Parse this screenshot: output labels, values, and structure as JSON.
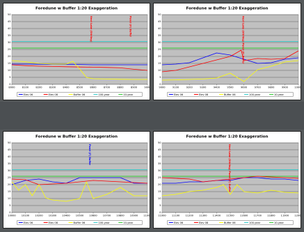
{
  "chart_data": [
    {
      "type": "line",
      "title": "Foredune w Buffer 1:20 Exaggeration",
      "ylim": [
        0,
        50
      ],
      "y_ticks": [
        "0",
        "5",
        "10",
        "15",
        "20",
        "25",
        "30",
        "35",
        "40",
        "45",
        "50"
      ],
      "x_ticks": [
        "8000",
        "8100",
        "8200",
        "8300",
        "8400",
        "8500",
        "8600",
        "8700",
        "8800",
        "8900",
        "9000"
      ],
      "xlim": [
        8000,
        9000
      ],
      "grid": true,
      "legend_position": "bottom",
      "annotations": [
        {
          "text": "Next Lake (Stirling)",
          "x": 8580,
          "color": "#ff0000"
        },
        {
          "text": "Panel (F) Buffer",
          "x": 8870,
          "color": "#ff0000"
        }
      ],
      "series": [
        {
          "name": "Elev 06",
          "color": "#0000ff",
          "x": [
            8000,
            8100,
            8200,
            8300,
            8400,
            8500,
            8600,
            8700,
            8800,
            8900,
            9000
          ],
          "y": [
            14.5,
            14.5,
            14.4,
            14.4,
            14.3,
            14.2,
            14.0,
            14.0,
            14.0,
            14.0,
            14.0
          ]
        },
        {
          "name": "Elev 08",
          "color": "#ff0000",
          "x": [
            8000,
            8100,
            8200,
            8300,
            8400,
            8500,
            8600,
            8700,
            8800,
            8900,
            9000
          ],
          "y": [
            14.0,
            13.4,
            13.0,
            12.8,
            12.6,
            12.4,
            12.3,
            12.1,
            11.8,
            10.8,
            10.0
          ]
        },
        {
          "name": "Buffer 06",
          "color": "#ffff00",
          "x": [
            8000,
            8100,
            8200,
            8300,
            8400,
            8450,
            8500,
            8550,
            8600,
            8700,
            8800,
            8900,
            9000
          ],
          "y": [
            17.0,
            16.2,
            15.0,
            14.5,
            14.5,
            16.5,
            11.0,
            5.0,
            4.0,
            3.8,
            3.6,
            3.5,
            3.5
          ]
        },
        {
          "name": "100-year",
          "color": "#33cccc",
          "x": [
            8000,
            9000
          ],
          "y": [
            30.8,
            30.8
          ]
        },
        {
          "name": "10-year",
          "color": "#33cc33",
          "x": [
            8000,
            9000
          ],
          "y": [
            26.0,
            26.0
          ]
        }
      ]
    },
    {
      "type": "line",
      "title": "Foredune w Buffer 1:20 Exaggeration",
      "ylim": [
        0,
        50
      ],
      "y_ticks": [
        "0",
        "5",
        "10",
        "15",
        "20",
        "25",
        "30",
        "35",
        "40",
        "45",
        "50"
      ],
      "x_ticks": [
        "9000",
        "9100",
        "9200",
        "9300",
        "9400",
        "9500",
        "9600",
        "9700",
        "9800",
        "9900",
        "10000"
      ],
      "xlim": [
        9000,
        10000
      ],
      "grid": true,
      "legend_position": "bottom",
      "annotations": [
        {
          "text": "Next Lake (Stirling) Panel (F) Buffer",
          "x": 9590,
          "color": "#ff0000"
        }
      ],
      "series": [
        {
          "name": "Elev 06",
          "color": "#0000ff",
          "x": [
            9000,
            9100,
            9200,
            9300,
            9400,
            9500,
            9600,
            9700,
            9800,
            9900,
            10000
          ],
          "y": [
            14.0,
            14.5,
            15.5,
            19.0,
            22.5,
            21.0,
            18.0,
            15.0,
            15.5,
            18.0,
            19.0
          ]
        },
        {
          "name": "Elev 08",
          "color": "#ff0000",
          "x": [
            9000,
            9100,
            9200,
            9300,
            9400,
            9500,
            9580,
            9600,
            9700,
            9800,
            9900,
            10000
          ],
          "y": [
            9.0,
            10.0,
            12.5,
            15.0,
            17.5,
            20.0,
            24.5,
            17.0,
            18.5,
            18.0,
            18.5,
            24.0
          ]
        },
        {
          "name": "Buffer 06",
          "color": "#ffff00",
          "x": [
            9000,
            9100,
            9200,
            9300,
            9400,
            9500,
            9600,
            9700,
            9800,
            9900,
            10000
          ],
          "y": [
            3.0,
            3.2,
            3.5,
            3.8,
            4.5,
            8.0,
            2.0,
            10.5,
            13.0,
            16.0,
            17.0
          ]
        },
        {
          "name": "100-year",
          "color": "#33cccc",
          "x": [
            9000,
            10000
          ],
          "y": [
            30.8,
            30.8
          ]
        },
        {
          "name": "10-year",
          "color": "#33cc33",
          "x": [
            9000,
            10000
          ],
          "y": [
            26.0,
            26.0
          ]
        }
      ]
    },
    {
      "type": "line",
      "title": "Foredune w Buffer 1:20 Exaggeration",
      "ylim": [
        0,
        50
      ],
      "y_ticks": [
        "0",
        "5",
        "10",
        "15",
        "20",
        "25",
        "30",
        "35",
        "40",
        "45",
        "50"
      ],
      "x_ticks": [
        "10000",
        "10100",
        "10200",
        "10300",
        "10400",
        "10500",
        "10600",
        "10700",
        "10800",
        "10900",
        "11000"
      ],
      "xlim": [
        10000,
        11000
      ],
      "grid": true,
      "legend_position": "bottom",
      "annotations": [
        {
          "text": "Panel (F) Buffer",
          "x": 10570,
          "color": "#0000ff"
        }
      ],
      "series": [
        {
          "name": "Elev 06",
          "color": "#0000ff",
          "x": [
            10000,
            10100,
            10200,
            10300,
            10400,
            10500,
            10600,
            10700,
            10800,
            10900,
            11000
          ],
          "y": [
            20.0,
            23.0,
            24.0,
            22.0,
            21.0,
            25.0,
            25.0,
            25.0,
            25.0,
            21.0,
            21.0
          ]
        },
        {
          "name": "Elev 08",
          "color": "#ff0000",
          "x": [
            10000,
            10100,
            10200,
            10300,
            10400,
            10500,
            10600,
            10700,
            10800,
            10900,
            11000
          ],
          "y": [
            24.0,
            23.5,
            20.0,
            20.5,
            21.0,
            22.0,
            23.0,
            22.5,
            22.0,
            21.5,
            21.0
          ]
        },
        {
          "name": "Buffer 06",
          "color": "#ffff00",
          "x": [
            10000,
            10050,
            10100,
            10150,
            10200,
            10250,
            10300,
            10400,
            10500,
            10550,
            10600,
            10700,
            10800,
            10900,
            11000
          ],
          "y": [
            22.0,
            16.0,
            20.0,
            12.0,
            20.0,
            10.5,
            9.0,
            8.0,
            10.0,
            22.0,
            10.0,
            13.0,
            18.0,
            12.0,
            12.0
          ]
        },
        {
          "name": "100-year",
          "color": "#33cccc",
          "x": [
            10000,
            11000
          ],
          "y": [
            30.8,
            30.8
          ]
        },
        {
          "name": "10-year",
          "color": "#33cc33",
          "x": [
            10000,
            11000
          ],
          "y": [
            26.0,
            26.0
          ]
        }
      ]
    },
    {
      "type": "line",
      "title": "Foredune w Buffer 1:20 Exaggeration",
      "ylim": [
        0,
        50
      ],
      "y_ticks": [
        "0",
        "5",
        "10",
        "15",
        "20",
        "25",
        "30",
        "35",
        "40",
        "45",
        "50"
      ],
      "x_ticks": [
        "11000",
        "11100",
        "11200",
        "11300",
        "11400",
        "11500",
        "11600",
        "11700",
        "11800",
        "11900",
        "12000"
      ],
      "xlim": [
        11000,
        12000
      ],
      "grid": true,
      "legend_position": "bottom",
      "annotations": [
        {
          "text": "Next Lake (Stirling) Panel (F) Buffer",
          "x": 11490,
          "color": "#ff0000"
        }
      ],
      "series": [
        {
          "name": "Elev 06",
          "color": "#0000ff",
          "x": [
            11000,
            11100,
            11200,
            11300,
            11400,
            11500,
            11600,
            11700,
            11800,
            11900,
            12000
          ],
          "y": [
            21.0,
            21.0,
            22.0,
            22.0,
            23.0,
            23.0,
            25.0,
            25.0,
            24.0,
            24.0,
            23.0
          ]
        },
        {
          "name": "Elev 08",
          "color": "#ff0000",
          "x": [
            11000,
            11100,
            11200,
            11300,
            11400,
            11500,
            11600,
            11700,
            11800,
            11900,
            12000
          ],
          "y": [
            25.0,
            24.5,
            24.0,
            22.0,
            23.0,
            24.0,
            25.0,
            26.0,
            25.5,
            25.0,
            24.5
          ]
        },
        {
          "name": "Buffer 06",
          "color": "#ffff00",
          "x": [
            11000,
            11100,
            11200,
            11300,
            11400,
            11450,
            11500,
            11550,
            11600,
            11700,
            11800,
            11900,
            12000
          ],
          "y": [
            12.0,
            13.0,
            15.0,
            16.0,
            18.0,
            20.0,
            13.0,
            20.0,
            15.0,
            14.0,
            16.0,
            14.5,
            14.0
          ]
        },
        {
          "name": "100-year",
          "color": "#33cccc",
          "x": [
            11000,
            12000
          ],
          "y": [
            30.8,
            30.8
          ]
        },
        {
          "name": "10-year",
          "color": "#33cc33",
          "x": [
            11000,
            12000
          ],
          "y": [
            26.0,
            26.0
          ]
        }
      ]
    }
  ]
}
